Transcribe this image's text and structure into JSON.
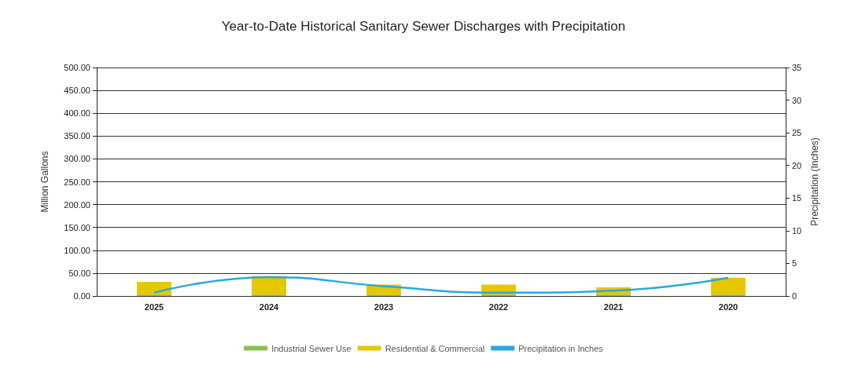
{
  "chart_data": {
    "type": "bar",
    "title": "Year-to-Date Historical Sanitary Sewer Discharges with Precipitation",
    "ylabel": "Million Gallons",
    "y2label": "Precipitation (Inches)",
    "categories": [
      "2025",
      "2024",
      "2023",
      "2022",
      "2021",
      "2020"
    ],
    "stacked": true,
    "series": [
      {
        "name": "Industrial Sewer Use",
        "color": "#8cc152",
        "values": [
          3,
          3,
          3,
          3,
          3,
          3
        ]
      },
      {
        "name": "Residential & Commercial",
        "color": "#e6c700",
        "values": [
          28,
          41,
          22,
          22,
          16,
          37
        ]
      },
      {
        "name": "Precipitation in Inches",
        "type": "line",
        "axis": "y2",
        "color": "#29a8e0",
        "values": [
          0.5,
          2.9,
          1.5,
          0.5,
          0.8,
          2.8
        ]
      }
    ],
    "ylim": [
      0,
      500
    ],
    "yticks": [
      {
        "value": 0,
        "label": "0.00"
      },
      {
        "value": 50,
        "label": "50.00"
      },
      {
        "value": 100,
        "label": "100.00"
      },
      {
        "value": 150,
        "label": "150.00"
      },
      {
        "value": 200,
        "label": "200.00"
      },
      {
        "value": 250,
        "label": "250.00"
      },
      {
        "value": 300,
        "label": "300.00"
      },
      {
        "value": 350,
        "label": "350.00"
      },
      {
        "value": 400,
        "label": "400.00"
      },
      {
        "value": 450,
        "label": "450.00"
      },
      {
        "value": 500,
        "label": "500.00"
      }
    ],
    "y2lim": [
      0,
      35
    ],
    "y2ticks": [
      0,
      5,
      10,
      15,
      20,
      25,
      30,
      35
    ],
    "grid": "y",
    "legend": "bottom",
    "marker": "none"
  }
}
